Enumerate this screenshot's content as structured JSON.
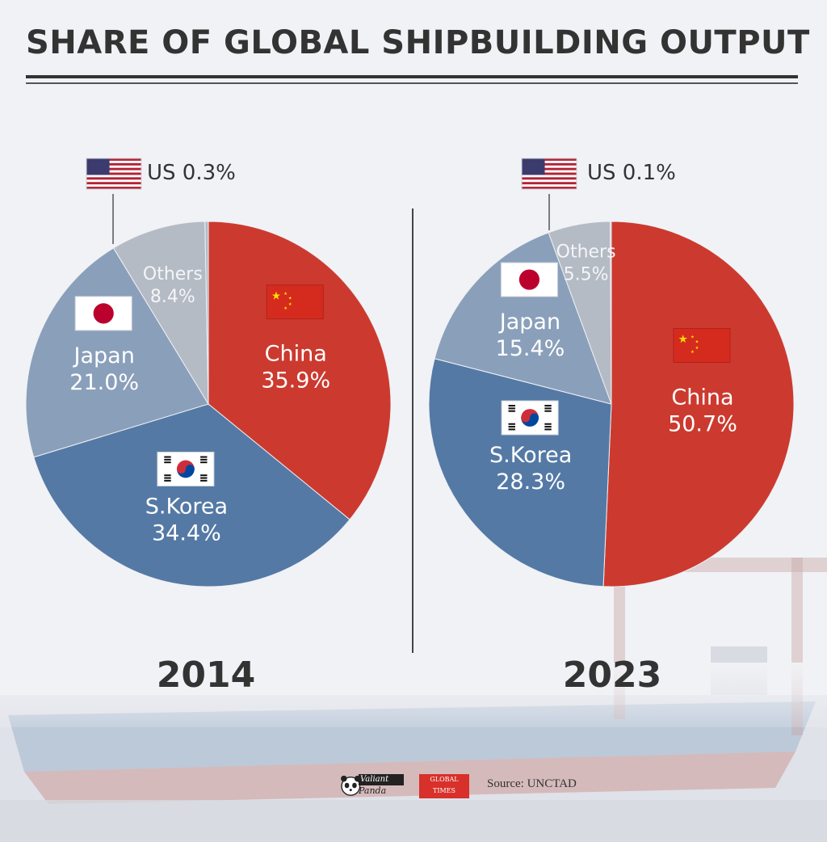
{
  "title": "SHARE OF GLOBAL SHIPBUILDING OUTPUT",
  "footer": {
    "source": "Source: UNCTAD",
    "logo1_lines": [
      "Valiant",
      "Panda"
    ],
    "logo2_lines": [
      "GLOBAL",
      "TIMES"
    ]
  },
  "colors": {
    "China": "#cc3a2f",
    "S.Korea": "#5479a5",
    "Japan": "#8a9fba",
    "Others": "#b5bbc5",
    "US": "#b5bbc5"
  },
  "chart_data": [
    {
      "type": "pie",
      "year": "2014",
      "slices": [
        {
          "label": "China",
          "value": 35.9,
          "display": "35.9%"
        },
        {
          "label": "S.Korea",
          "value": 34.4,
          "display": "34.4%"
        },
        {
          "label": "Japan",
          "value": 21.0,
          "display": "21.0%"
        },
        {
          "label": "Others",
          "value": 8.4,
          "display": "8.4%"
        },
        {
          "label": "US",
          "value": 0.3,
          "display": "0.3%"
        }
      ]
    },
    {
      "type": "pie",
      "year": "2023",
      "slices": [
        {
          "label": "China",
          "value": 50.7,
          "display": "50.7%"
        },
        {
          "label": "S.Korea",
          "value": 28.3,
          "display": "28.3%"
        },
        {
          "label": "Japan",
          "value": 15.4,
          "display": "15.4%"
        },
        {
          "label": "Others",
          "value": 5.5,
          "display": "5.5%"
        },
        {
          "label": "US",
          "value": 0.1,
          "display": "0.1%"
        }
      ]
    }
  ]
}
